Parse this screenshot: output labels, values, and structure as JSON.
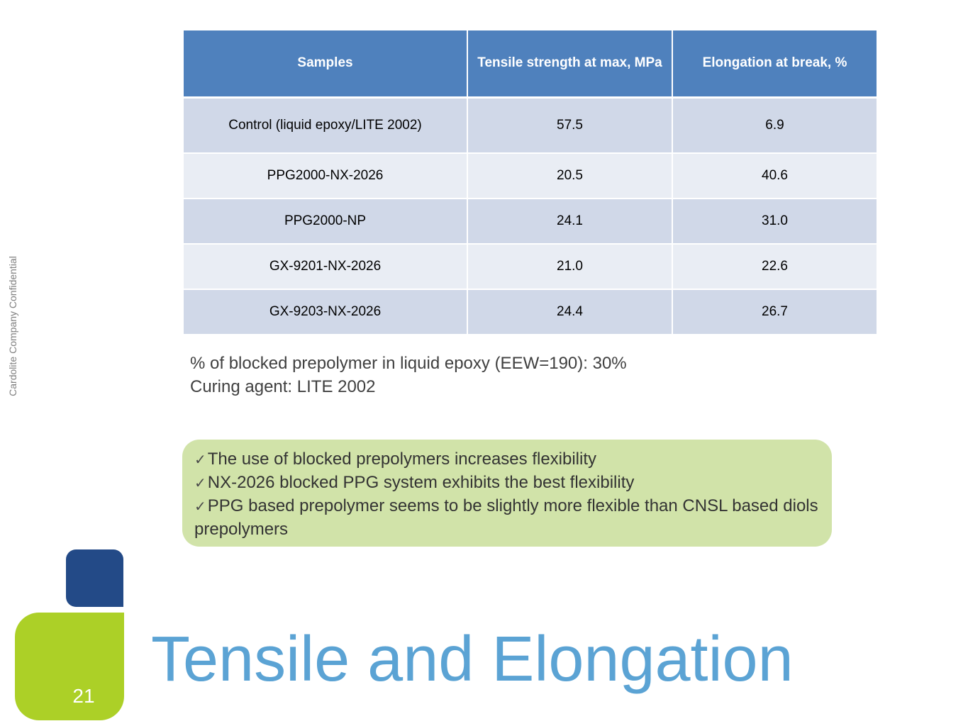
{
  "side_label": "Cardolite Company Confidential",
  "table": {
    "headers": [
      "Samples",
      "Tensile strength at max, MPa",
      "Elongation at break, %"
    ],
    "rows": [
      [
        "Control (liquid epoxy/LITE 2002)",
        "57.5",
        "6.9"
      ],
      [
        "PPG2000-NX-2026",
        "20.5",
        "40.6"
      ],
      [
        "PPG2000-NP",
        "24.1",
        "31.0"
      ],
      [
        "GX-9201-NX-2026",
        "21.0",
        "22.6"
      ],
      [
        "GX-9203-NX-2026",
        "24.4",
        "26.7"
      ]
    ]
  },
  "notes": [
    "% of blocked prepolymer in liquid epoxy (EEW=190): 30%",
    "Curing agent: LITE 2002"
  ],
  "conclusions": [
    "The use of blocked prepolymers increases flexibility",
    "NX-2026 blocked PPG system exhibits the best flexibility",
    "PPG based prepolymer seems to be slightly more flexible than CNSL based diols prepolymers"
  ],
  "slide_number": "21",
  "title": "Tensile and Elongation",
  "colors": {
    "header_blue": "#4f81bd",
    "row_dark": "#d0d8e8",
    "row_light": "#e9edf4",
    "callout_green": "#d1e3a9",
    "accent_navy": "#234a87",
    "accent_lime": "#acd027",
    "title_blue": "#5ba3d4"
  }
}
